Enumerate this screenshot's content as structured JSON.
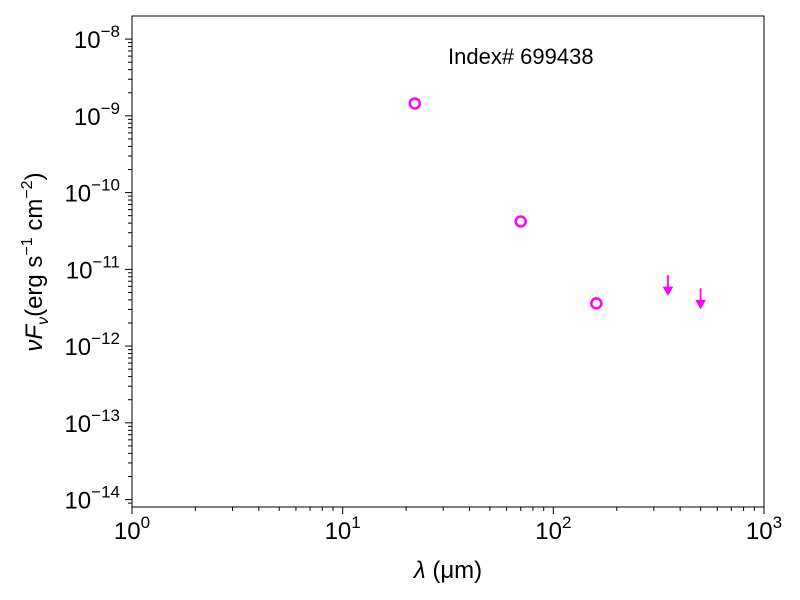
{
  "chart_data": {
    "type": "scatter",
    "x_scale": "log",
    "y_scale": "log",
    "xlim": [
      1,
      1000
    ],
    "ylim": [
      8e-15,
      2e-08
    ],
    "x_ticks": [
      {
        "value": 1,
        "base": "10",
        "exp": "0"
      },
      {
        "value": 10,
        "base": "10",
        "exp": "1"
      },
      {
        "value": 100,
        "base": "10",
        "exp": "2"
      },
      {
        "value": 1000,
        "base": "10",
        "exp": "3"
      }
    ],
    "y_ticks": [
      {
        "value": 1e-14,
        "base": "10",
        "exp": "−14"
      },
      {
        "value": 1e-13,
        "base": "10",
        "exp": "−13"
      },
      {
        "value": 1e-12,
        "base": "10",
        "exp": "−12"
      },
      {
        "value": 1e-11,
        "base": "10",
        "exp": "−11"
      },
      {
        "value": 1e-10,
        "base": "10",
        "exp": "−10"
      },
      {
        "value": 1e-09,
        "base": "10",
        "exp": "−9"
      },
      {
        "value": 1e-08,
        "base": "10",
        "exp": "−8"
      }
    ],
    "xlabel": {
      "symbol": "λ",
      "unit": "(μm)"
    },
    "ylabel": {
      "nu": "ν",
      "F": "F",
      "sub": "ν",
      "unit_open": "(erg s",
      "exp1": "−1",
      "mid": " cm",
      "exp2": "−2",
      "close": ")"
    },
    "annotation": "Index# 699438",
    "grid": false,
    "color": "#ff00ff",
    "series": [
      {
        "marker": "open-circle",
        "points": [
          {
            "x": 22,
            "y": 1.45e-09
          },
          {
            "x": 70,
            "y": 4.2e-11
          },
          {
            "x": 160,
            "y": 3.6e-12
          }
        ]
      },
      {
        "marker": "upper-limit-arrow",
        "points": [
          {
            "x": 350,
            "y": 5.2e-12
          },
          {
            "x": 500,
            "y": 3.5e-12
          }
        ]
      }
    ]
  }
}
